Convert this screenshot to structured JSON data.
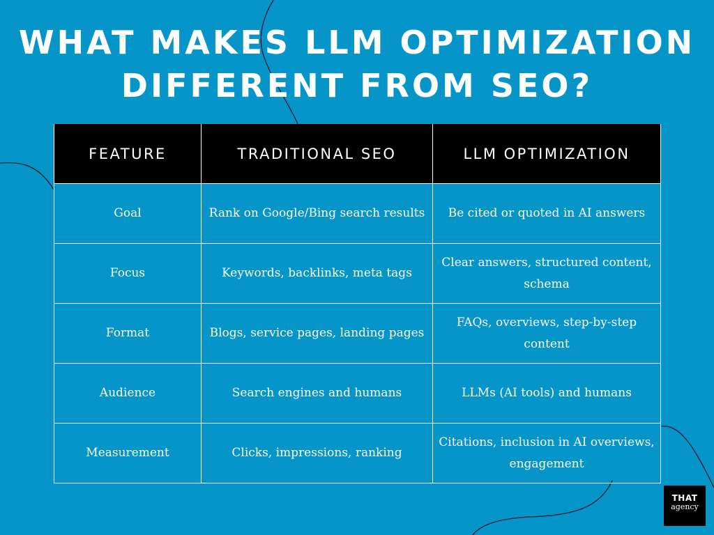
{
  "title": {
    "line1": "WHAT MAKES LLM OPTIMIZATION",
    "line2": "DIFFERENT FROM SEO?"
  },
  "table": {
    "headers": [
      "FEATURE",
      "TRADITIONAL SEO",
      "LLM OPTIMIZATION"
    ],
    "rows": [
      [
        "Goal",
        "Rank on Google/Bing search results",
        "Be cited or quoted in AI answers"
      ],
      [
        "Focus",
        "Keywords, backlinks, meta tags",
        "Clear answers, structured content, schema"
      ],
      [
        "Format",
        "Blogs, service pages, landing pages",
        "FAQs, overviews, step-by-step content"
      ],
      [
        "Audience",
        "Search engines and humans",
        "LLMs (AI tools) and humans"
      ],
      [
        "Measurement",
        "Clicks, impressions, ranking",
        "Citations, inclusion in AI overviews, engagement"
      ]
    ]
  },
  "logo": {
    "line1": "THAT",
    "line2": "agency"
  },
  "colors": {
    "background": "#0595c9",
    "header_background": "#000000",
    "text": "#ffffff"
  }
}
